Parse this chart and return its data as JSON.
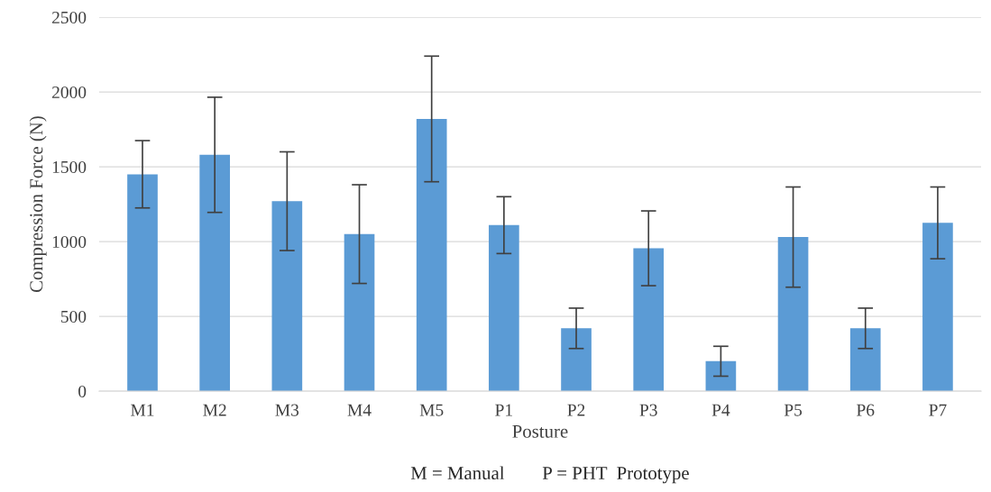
{
  "chart_data": {
    "type": "bar",
    "categories": [
      "M1",
      "M2",
      "M3",
      "M4",
      "M5",
      "P1",
      "P2",
      "P3",
      "P4",
      "P5",
      "P6",
      "P7"
    ],
    "values": [
      1450,
      1580,
      1270,
      1050,
      1820,
      1110,
      420,
      955,
      200,
      1030,
      420,
      1125
    ],
    "errors": [
      225,
      385,
      330,
      330,
      420,
      190,
      135,
      250,
      100,
      335,
      135,
      240
    ],
    "color": "#5b9bd5",
    "xlabel": "Posture",
    "ylabel": "Compression Force (N)",
    "annotations": [
      "M = Manual        P = PHT  Prototype"
    ],
    "ylim": [
      0,
      2500
    ],
    "yticks": [
      0,
      500,
      1000,
      1500,
      2000,
      2500
    ],
    "grid": "y"
  }
}
